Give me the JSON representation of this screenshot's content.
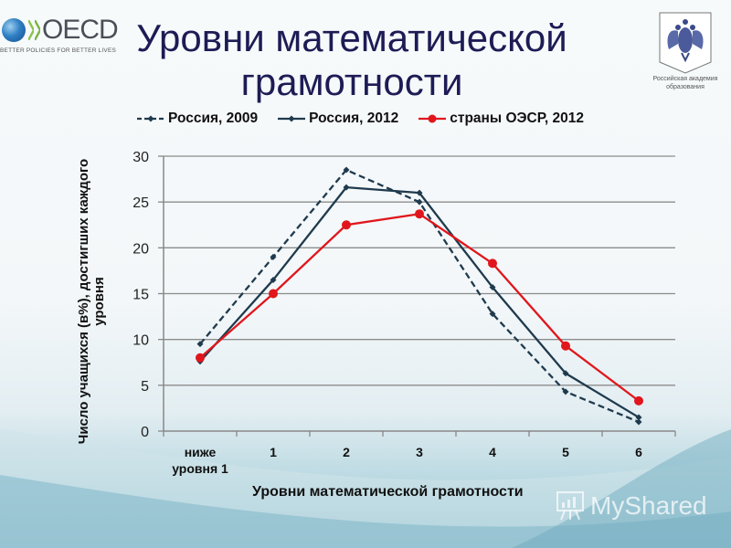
{
  "slide": {
    "title": "Уровни математической грамотности"
  },
  "logos": {
    "oecd_name": "OECD",
    "oecd_tagline": "BETTER POLICIES FOR BETTER LIVES",
    "emblem_caption_line1": "Российская академия",
    "emblem_caption_line2": "образования"
  },
  "watermark": {
    "text_a": "My",
    "text_b": "Shared"
  },
  "colors": {
    "russia": "#1f3a4d",
    "oecd": "#e0161c",
    "grid": "#8c8c8c",
    "title": "#1d1c55"
  },
  "chart_data": {
    "type": "line",
    "title": "Уровни математической грамотности",
    "xlabel": "Уровни математической грамотности",
    "ylabel": "Число учащихся (в%), достигших каждого уровня",
    "categories": [
      "ниже уровня 1",
      "1",
      "2",
      "3",
      "4",
      "5",
      "6"
    ],
    "category_lines": [
      [
        "ниже",
        "уровня 1"
      ],
      [
        "1"
      ],
      [
        "2"
      ],
      [
        "3"
      ],
      [
        "4"
      ],
      [
        "5"
      ],
      [
        "6"
      ]
    ],
    "yticks": [
      "0",
      "5",
      "10",
      "15",
      "20",
      "25",
      "30"
    ],
    "ylim": [
      0,
      30
    ],
    "grid": true,
    "legend_position": "top",
    "series": [
      {
        "name": "Россия, 2009",
        "style": "dashed",
        "marker": "diamond",
        "color": "#1f3a4d",
        "values": [
          9.5,
          19.0,
          28.5,
          25.0,
          12.8,
          4.3,
          1.0
        ]
      },
      {
        "name": "Россия, 2012",
        "style": "solid",
        "marker": "diamond",
        "color": "#1f3a4d",
        "values": [
          7.6,
          16.5,
          26.6,
          26.0,
          15.7,
          6.3,
          1.5
        ]
      },
      {
        "name": "страны ОЭСР, 2012",
        "style": "solid",
        "marker": "circle",
        "color": "#e0161c",
        "values": [
          8.0,
          15.0,
          22.5,
          23.7,
          18.3,
          9.3,
          3.3
        ]
      }
    ]
  }
}
